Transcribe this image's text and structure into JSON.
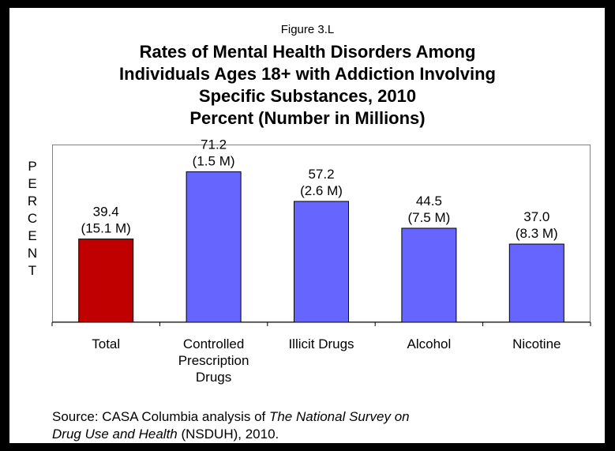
{
  "figure_label": "Figure 3.L",
  "title_lines": [
    "Rates of Mental Health Disorders Among",
    "Individuals Ages 18+ with Addiction Involving",
    "Specific Substances, 2010",
    "Percent (Number in Millions)"
  ],
  "ylabel_letters": [
    "P",
    "E",
    "R",
    "C",
    "E",
    "N",
    "T"
  ],
  "source": {
    "prefix": "Source:  CASA Columbia analysis of ",
    "italic1": "The National Survey on",
    "italic2": "Drug Use and Health",
    "suffix": " (NSDUH), 2010."
  },
  "colors": {
    "highlight": "#C00000",
    "bar": "#6666FF",
    "background": "#000000",
    "panel": "#FFFFFF"
  },
  "chart_data": {
    "type": "bar",
    "title": "Rates of Mental Health Disorders Among Individuals Ages 18+ with Addiction Involving Specific Substances, 2010",
    "subtitle": "Percent (Number in Millions)",
    "ylabel": "PERCENT",
    "xlabel": "",
    "ylim": [
      0,
      80
    ],
    "grid": false,
    "categories": [
      [
        "Total"
      ],
      [
        "Controlled",
        "Prescription",
        "Drugs"
      ],
      [
        "Illicit Drugs"
      ],
      [
        "Alcohol"
      ],
      [
        "Nicotine"
      ]
    ],
    "values": [
      39.4,
      71.2,
      57.2,
      44.5,
      37.0
    ],
    "value_labels": [
      "39.4",
      "71.2",
      "57.2",
      "44.5",
      "37.0"
    ],
    "count_labels": [
      "(15.1 M)",
      "(1.5 M)",
      "(2.6 M)",
      "(7.5 M)",
      "(8.3 M)"
    ],
    "bar_colors": [
      "#C00000",
      "#6666FF",
      "#6666FF",
      "#6666FF",
      "#6666FF"
    ]
  }
}
